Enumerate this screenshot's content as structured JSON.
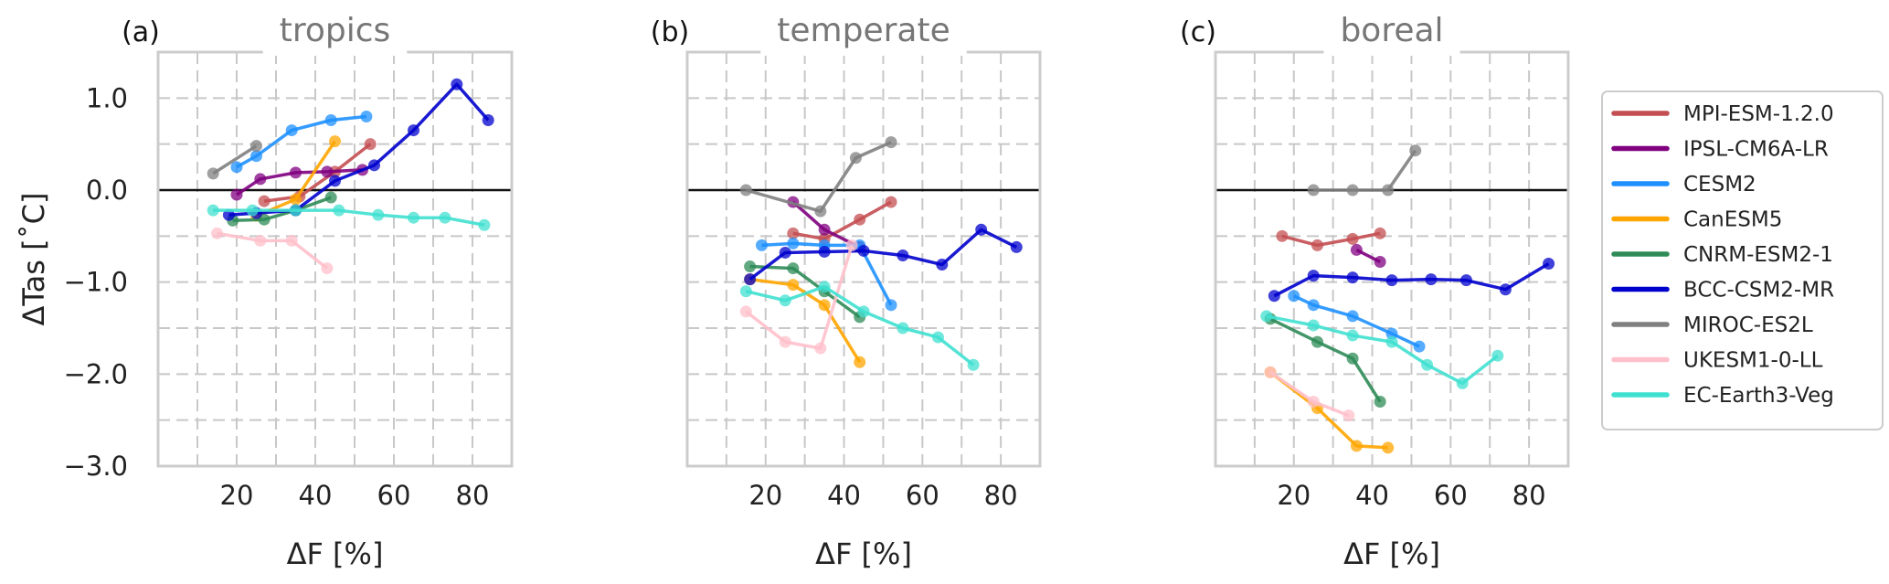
{
  "figure": {
    "ylabel": "ΔTas [˚C]",
    "y_ticks": [
      "1.0",
      "0.0",
      "−1.0",
      "−2.0",
      "−3.0"
    ],
    "x_ticks": [
      "20",
      "40",
      "60",
      "80"
    ]
  },
  "legend": {
    "entries": [
      {
        "name": "MPI-ESM-1.2.0",
        "color": "#c44e52"
      },
      {
        "name": "IPSL-CM6A-LR",
        "color": "#800080"
      },
      {
        "name": "CESM2",
        "color": "#1e90ff"
      },
      {
        "name": "CanESM5",
        "color": "#ffa500"
      },
      {
        "name": "CNRM-ESM2-1",
        "color": "#2e8b57"
      },
      {
        "name": "BCC-CSM2-MR",
        "color": "#0000cd"
      },
      {
        "name": "MIROC-ES2L",
        "color": "#808080"
      },
      {
        "name": "UKESM1-0-LL",
        "color": "#ffc0cb"
      },
      {
        "name": "EC-Earth3-Veg",
        "color": "#40e0d0"
      }
    ]
  },
  "chart_data": [
    {
      "type": "line",
      "panel": "(a)",
      "title": "tropics",
      "xlabel": "ΔF [%]",
      "ylabel": "ΔTas [˚C]",
      "xlim": [
        0,
        90
      ],
      "ylim": [
        -3.0,
        1.5
      ],
      "grid": true,
      "series": [
        {
          "name": "MPI-ESM-1.2.0",
          "x": [
            27,
            36,
            45,
            54
          ],
          "y": [
            -0.12,
            -0.07,
            0.2,
            0.5
          ]
        },
        {
          "name": "IPSL-CM6A-LR",
          "x": [
            20,
            26,
            35,
            43,
            52
          ],
          "y": [
            -0.05,
            0.12,
            0.19,
            0.2,
            0.22
          ]
        },
        {
          "name": "CESM2",
          "x": [
            20,
            25,
            34,
            44,
            53
          ],
          "y": [
            0.25,
            0.37,
            0.65,
            0.76,
            0.8
          ]
        },
        {
          "name": "CanESM5",
          "x": [
            25,
            35,
            45
          ],
          "y": [
            -0.28,
            -0.1,
            0.53
          ]
        },
        {
          "name": "CNRM-ESM2-1",
          "x": [
            19,
            27,
            35,
            44
          ],
          "y": [
            -0.33,
            -0.32,
            -0.22,
            -0.08
          ]
        },
        {
          "name": "BCC-CSM2-MR",
          "x": [
            18,
            25,
            35,
            45,
            55,
            65,
            76,
            84
          ],
          "y": [
            -0.27,
            -0.25,
            -0.22,
            0.1,
            0.27,
            0.65,
            1.15,
            0.76
          ]
        },
        {
          "name": "MIROC-ES2L",
          "x": [
            14,
            25
          ],
          "y": [
            0.18,
            0.48
          ]
        },
        {
          "name": "UKESM1-0-LL",
          "x": [
            15,
            26,
            34,
            43
          ],
          "y": [
            -0.47,
            -0.55,
            -0.55,
            -0.85
          ]
        },
        {
          "name": "EC-Earth3-Veg",
          "x": [
            14,
            24,
            35,
            46,
            56,
            65,
            73,
            83
          ],
          "y": [
            -0.22,
            -0.22,
            -0.22,
            -0.22,
            -0.27,
            -0.3,
            -0.3,
            -0.38
          ]
        }
      ]
    },
    {
      "type": "line",
      "panel": "(b)",
      "title": "temperate",
      "xlabel": "ΔF [%]",
      "xlim": [
        0,
        90
      ],
      "ylim": [
        -3.0,
        1.5
      ],
      "grid": true,
      "series": [
        {
          "name": "MPI-ESM-1.2.0",
          "x": [
            27,
            35,
            44,
            52
          ],
          "y": [
            -0.47,
            -0.53,
            -0.32,
            -0.13
          ]
        },
        {
          "name": "IPSL-CM6A-LR",
          "x": [
            27,
            35,
            44
          ],
          "y": [
            -0.13,
            -0.43,
            -0.62
          ]
        },
        {
          "name": "CESM2",
          "x": [
            19,
            27,
            35,
            44,
            52
          ],
          "y": [
            -0.6,
            -0.58,
            -0.6,
            -0.6,
            -1.25
          ]
        },
        {
          "name": "CanESM5",
          "x": [
            16,
            27,
            35,
            44
          ],
          "y": [
            -0.97,
            -1.03,
            -1.25,
            -1.87
          ]
        },
        {
          "name": "CNRM-ESM2-1",
          "x": [
            16,
            27,
            35,
            44
          ],
          "y": [
            -0.83,
            -0.85,
            -1.1,
            -1.38
          ]
        },
        {
          "name": "BCC-CSM2-MR",
          "x": [
            16,
            25,
            35,
            45,
            55,
            65,
            75,
            84
          ],
          "y": [
            -0.97,
            -0.68,
            -0.67,
            -0.66,
            -0.71,
            -0.81,
            -0.43,
            -0.62
          ]
        },
        {
          "name": "MIROC-ES2L",
          "x": [
            15,
            34,
            43,
            52
          ],
          "y": [
            0.0,
            -0.23,
            0.35,
            0.52
          ]
        },
        {
          "name": "UKESM1-0-LL",
          "x": [
            15,
            25,
            34,
            42
          ],
          "y": [
            -1.32,
            -1.65,
            -1.72,
            -0.6
          ]
        },
        {
          "name": "EC-Earth3-Veg",
          "x": [
            15,
            25,
            35,
            45,
            55,
            64,
            73
          ],
          "y": [
            -1.1,
            -1.2,
            -1.05,
            -1.32,
            -1.5,
            -1.6,
            -1.9
          ]
        }
      ]
    },
    {
      "type": "line",
      "panel": "(c)",
      "title": "boreal",
      "xlabel": "ΔF [%]",
      "xlim": [
        0,
        90
      ],
      "ylim": [
        -3.0,
        1.5
      ],
      "grid": true,
      "series": [
        {
          "name": "MPI-ESM-1.2.0",
          "x": [
            17,
            26,
            35,
            42
          ],
          "y": [
            -0.5,
            -0.6,
            -0.53,
            -0.47
          ]
        },
        {
          "name": "IPSL-CM6A-LR",
          "x": [
            36,
            42
          ],
          "y": [
            -0.65,
            -0.78
          ]
        },
        {
          "name": "CESM2",
          "x": [
            20,
            25,
            35,
            45,
            52
          ],
          "y": [
            -1.15,
            -1.25,
            -1.37,
            -1.56,
            -1.7
          ]
        },
        {
          "name": "CanESM5",
          "x": [
            14,
            26,
            36,
            44
          ],
          "y": [
            -1.98,
            -2.37,
            -2.78,
            -2.8
          ]
        },
        {
          "name": "CNRM-ESM2-1",
          "x": [
            14,
            26,
            35,
            42
          ],
          "y": [
            -1.4,
            -1.65,
            -1.83,
            -2.3
          ]
        },
        {
          "name": "BCC-CSM2-MR",
          "x": [
            15,
            25,
            35,
            45,
            55,
            64,
            74,
            85
          ],
          "y": [
            -1.15,
            -0.93,
            -0.95,
            -0.98,
            -0.97,
            -0.98,
            -1.08,
            -0.8
          ]
        },
        {
          "name": "MIROC-ES2L",
          "x": [
            25,
            35,
            44,
            51
          ],
          "y": [
            0.0,
            0.0,
            0.0,
            0.43
          ]
        },
        {
          "name": "UKESM1-0-LL",
          "x": [
            14,
            25,
            34
          ],
          "y": [
            -1.98,
            -2.3,
            -2.45
          ]
        },
        {
          "name": "EC-Earth3-Veg",
          "x": [
            13,
            25,
            35,
            45,
            54,
            63,
            72
          ],
          "y": [
            -1.37,
            -1.47,
            -1.58,
            -1.65,
            -1.9,
            -2.1,
            -1.8
          ]
        }
      ]
    }
  ]
}
